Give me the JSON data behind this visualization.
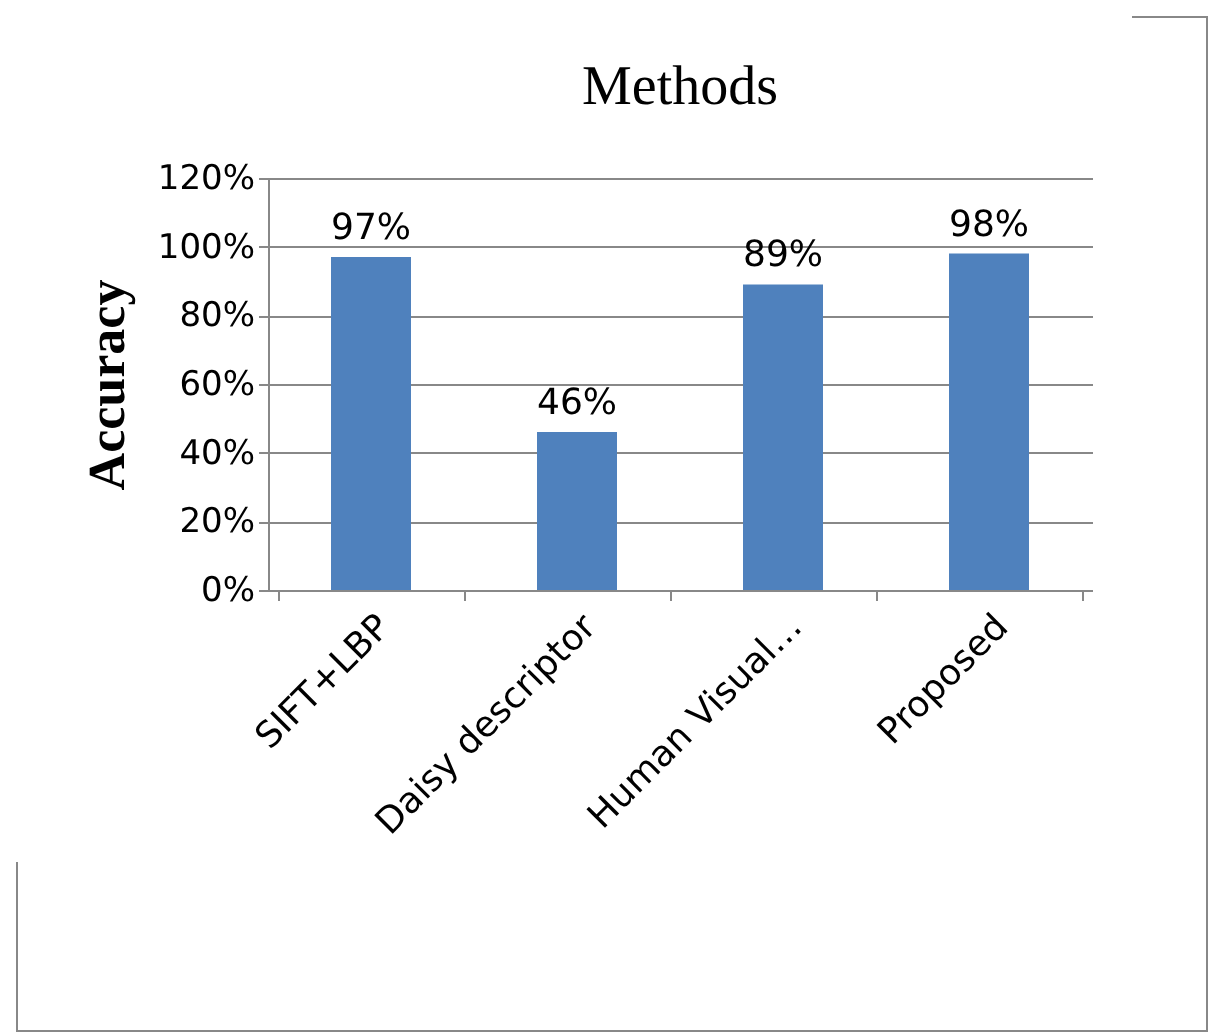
{
  "chart_data": {
    "type": "bar",
    "title": "Methods",
    "ylabel": "Accuracy",
    "categories": [
      "SIFT+LBP",
      "Daisy descriptor",
      "Human Visual…",
      "Proposed"
    ],
    "values": [
      97,
      46,
      89,
      98
    ],
    "color": "#4f81bd",
    "value_labels": [
      "97%",
      "46%",
      "89%",
      "98%"
    ],
    "ylim": [
      0,
      120
    ],
    "yticks": [
      {
        "value": 0,
        "label": "0%"
      },
      {
        "value": 20,
        "label": "20%"
      },
      {
        "value": 40,
        "label": "40%"
      },
      {
        "value": 60,
        "label": "60%"
      },
      {
        "value": 80,
        "label": "80%"
      },
      {
        "value": 100,
        "label": "100%"
      },
      {
        "value": 120,
        "label": "120%"
      }
    ],
    "grid": "y"
  }
}
